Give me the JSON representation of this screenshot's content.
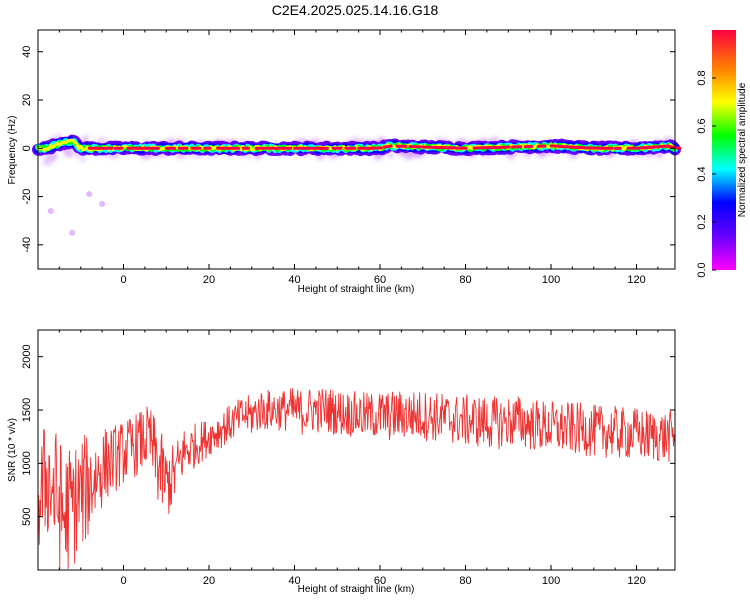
{
  "title": "C2E4.2025.025.14.16.G18",
  "chart_data": [
    {
      "type": "heatmap",
      "xlabel": "Height of straight line (km)",
      "ylabel": "Frequency (Hz)",
      "xlim": [
        -20,
        129
      ],
      "ylim": [
        -50,
        49
      ],
      "x_ticks": [
        "0",
        "20",
        "40",
        "60",
        "80",
        "100",
        "120"
      ],
      "y_ticks": [
        "-40",
        "-20",
        "0",
        "20",
        "40"
      ],
      "colorbar": {
        "label": "Normalized spectral amplitude",
        "range": [
          0,
          1
        ],
        "ticks": [
          "0.0",
          "0.2",
          "0.4",
          "0.6",
          "0.8"
        ],
        "placement": "right",
        "colors": [
          "#ff00ff",
          "#6600ff",
          "#0000ff",
          "#00ffff",
          "#00ff00",
          "#ffff00",
          "#ff8000",
          "#ff0040"
        ]
      },
      "ridge": {
        "description_points": [
          [
            -18,
            0
          ],
          [
            -15,
            2
          ],
          [
            -12,
            3
          ],
          [
            -10,
            0
          ],
          [
            0,
            0
          ],
          [
            20,
            0
          ],
          [
            40,
            0
          ],
          [
            60,
            0
          ],
          [
            62,
            1
          ],
          [
            80,
            0
          ],
          [
            100,
            1
          ],
          [
            110,
            0
          ],
          [
            120,
            0
          ],
          [
            128,
            1
          ]
        ],
        "core_amplitude": 0.95,
        "halo_amplitude": 0.15
      },
      "scatter_noise": [
        {
          "x": -17,
          "y": -26
        },
        {
          "x": -12,
          "y": -35
        },
        {
          "x": -5,
          "y": -23
        },
        {
          "x": -8,
          "y": -19
        }
      ]
    },
    {
      "type": "line",
      "xlabel": "Height of straight line (km)",
      "ylabel": "SNR (10 * v/v)",
      "xlim": [
        -20,
        129
      ],
      "ylim": [
        0,
        2250
      ],
      "x_ticks": [
        "0",
        "20",
        "40",
        "60",
        "80",
        "100",
        "120"
      ],
      "y_ticks": [
        "500",
        "1000",
        "1500",
        "2000"
      ],
      "color": "#ee3333",
      "series": [
        {
          "x": [
            -20,
            -18,
            -16,
            -14,
            -12,
            -10,
            -8,
            -6,
            -4,
            -2,
            0,
            2,
            4,
            6,
            8,
            10,
            12,
            14,
            16,
            18,
            20,
            22,
            24,
            26,
            28,
            30,
            32,
            34,
            36,
            38,
            40,
            42,
            44,
            46,
            48,
            50,
            52,
            54,
            56,
            58,
            60,
            62,
            64,
            66,
            68,
            70,
            72,
            74,
            76,
            78,
            80,
            82,
            84,
            86,
            88,
            90,
            92,
            94,
            96,
            98,
            100,
            102,
            104,
            106,
            108,
            110,
            112,
            114,
            116,
            118,
            120,
            122,
            124,
            126,
            128
          ],
          "values": [
            600,
            900,
            700,
            500,
            600,
            700,
            800,
            900,
            1000,
            1050,
            1100,
            1150,
            1200,
            1250,
            1000,
            800,
            900,
            1100,
            1150,
            1200,
            1250,
            1300,
            1350,
            1400,
            1450,
            1450,
            1500,
            1500,
            1500,
            1500,
            1500,
            1480,
            1500,
            1500,
            1500,
            1480,
            1470,
            1460,
            1450,
            1450,
            1450,
            1440,
            1450,
            1460,
            1450,
            1450,
            1440,
            1430,
            1420,
            1410,
            1400,
            1400,
            1390,
            1380,
            1380,
            1390,
            1400,
            1380,
            1360,
            1350,
            1340,
            1330,
            1330,
            1320,
            1320,
            1300,
            1300,
            1300,
            1280,
            1280,
            1280,
            1260,
            1260,
            1250,
            1250
          ],
          "spread": [
            500,
            600,
            650,
            650,
            600,
            550,
            500,
            400,
            350,
            320,
            300,
            300,
            300,
            300,
            400,
            350,
            300,
            250,
            220,
            200,
            180,
            180,
            180,
            180,
            180,
            200,
            200,
            200,
            200,
            200,
            220,
            220,
            220,
            220,
            220,
            220,
            220,
            220,
            220,
            220,
            240,
            240,
            240,
            240,
            240,
            240,
            240,
            240,
            240,
            240,
            250,
            250,
            250,
            250,
            250,
            250,
            250,
            250,
            250,
            250,
            250,
            250,
            250,
            250,
            250,
            250,
            250,
            250,
            250,
            250,
            250,
            250,
            250,
            250,
            250
          ]
        }
      ]
    }
  ]
}
